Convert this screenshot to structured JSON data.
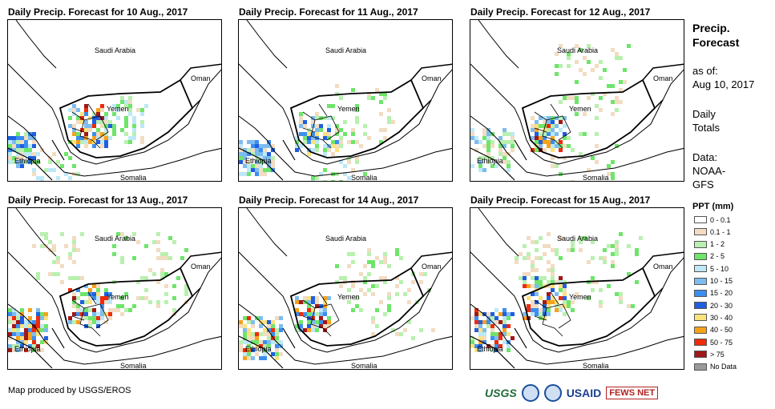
{
  "panels": [
    {
      "title": "Daily Precip. Forecast for 10 Aug., 2017",
      "labels": {
        "saudi": "Saudi Arabia",
        "oman": "Oman",
        "yemen": "Yemen",
        "ethiopia": "Ethiopia",
        "somalia": "Somalia"
      }
    },
    {
      "title": "Daily Precip. Forecast for 11 Aug., 2017",
      "labels": {
        "saudi": "Saudi Arabia",
        "oman": "Oman",
        "yemen": "Yemen",
        "ethiopia": "Ethiopia",
        "somalia": "Somalia"
      }
    },
    {
      "title": "Daily Precip. Forecast for 12 Aug., 2017",
      "labels": {
        "saudi": "Saudi Arabia",
        "oman": "Oman",
        "yemen": "Yemen",
        "ethiopia": "Ethiopia",
        "somalia": "Somalia"
      }
    },
    {
      "title": "Daily Precip. Forecast for 13 Aug., 2017",
      "labels": {
        "saudi": "Saudi Arabia",
        "oman": "Oman",
        "yemen": "Yemen",
        "ethiopia": "Ethiopia",
        "somalia": "Somalia"
      }
    },
    {
      "title": "Daily Precip. Forecast for 14 Aug., 2017",
      "labels": {
        "saudi": "Saudi Arabia",
        "oman": "Oman",
        "yemen": "Yemen",
        "ethiopia": "Ethiopia",
        "somalia": "Somalia"
      }
    },
    {
      "title": "Daily Precip. Forecast for 15 Aug., 2017",
      "labels": {
        "saudi": "Saudi Arabia",
        "oman": "Oman",
        "yemen": "Yemen",
        "ethiopia": "Ethiopia",
        "somalia": "Somalia"
      }
    }
  ],
  "sidebar": {
    "title_line1": "Precip.",
    "title_line2": "Forecast",
    "asof_label": "as of:",
    "asof_date": "Aug 10, 2017",
    "totals_line1": "Daily",
    "totals_line2": "Totals",
    "data_label": "Data:",
    "data_source_line1": "NOAA-",
    "data_source_line2": "GFS"
  },
  "legend": {
    "title": "PPT (mm)",
    "items": [
      {
        "label": "0 - 0.1",
        "color": "#ffffff"
      },
      {
        "label": "0.1 - 1",
        "color": "#f2dcc2"
      },
      {
        "label": "1 - 2",
        "color": "#b9f0b0"
      },
      {
        "label": "2 - 5",
        "color": "#6ee56a"
      },
      {
        "label": "5 - 10",
        "color": "#bde8f7"
      },
      {
        "label": "10 - 15",
        "color": "#7dbcf0"
      },
      {
        "label": "15 - 20",
        "color": "#3c8ef0"
      },
      {
        "label": "20 - 30",
        "color": "#1f5fe0"
      },
      {
        "label": "30 - 40",
        "color": "#fde27a"
      },
      {
        "label": "40 - 50",
        "color": "#f7a21a"
      },
      {
        "label": "50 - 75",
        "color": "#f02a0a"
      },
      {
        "label": "> 75",
        "color": "#a01818"
      },
      {
        "label": "No Data",
        "color": "#9a9a9a"
      }
    ]
  },
  "footer": {
    "credit": "Map produced by USGS/EROS",
    "logo_usgs": "USGS",
    "logo_usaid": "USAID",
    "logo_fews": "FEWS NET"
  }
}
